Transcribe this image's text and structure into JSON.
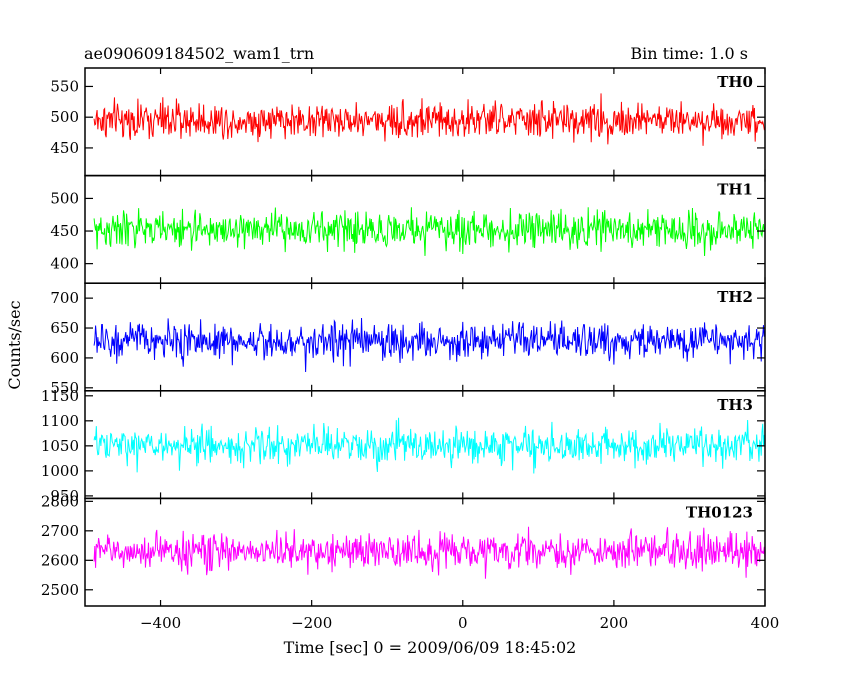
{
  "chart_data": {
    "type": "line",
    "title": "ae090609184502_wam1_trn",
    "bin_time_label": "Bin time: 1.0 s",
    "xlabel": "Time [sec] 0 = 2009/06/09 18:45:02",
    "ylabel": "Counts/sec",
    "xlim": [
      -500,
      400
    ],
    "x_ticks": [
      -400,
      -200,
      0,
      200,
      400
    ],
    "x_tick_labels": [
      "−400",
      "−200",
      "0",
      "200",
      "400"
    ],
    "bin_size_s": 1.0,
    "series": [
      {
        "name": "TH0",
        "color": "#ff0000",
        "ylim": [
          405,
          580
        ],
        "y_ticks": [
          450,
          500,
          550
        ],
        "mean": 495,
        "std": 27
      },
      {
        "name": "TH1",
        "color": "#00ff00",
        "ylim": [
          370,
          535
        ],
        "y_ticks": [
          400,
          450,
          500
        ],
        "mean": 452,
        "std": 25
      },
      {
        "name": "TH2",
        "color": "#0000ff",
        "ylim": [
          545,
          725
        ],
        "y_ticks": [
          550,
          600,
          650,
          700
        ],
        "mean": 628,
        "std": 28
      },
      {
        "name": "TH3",
        "color": "#00ffff",
        "ylim": [
          945,
          1160
        ],
        "y_ticks": [
          950,
          1000,
          1050,
          1100,
          1150
        ],
        "mean": 1050,
        "std": 33
      },
      {
        "name": "TH0123",
        "color": "#ff00ff",
        "ylim": [
          2445,
          2810
        ],
        "y_ticks": [
          2500,
          2600,
          2700,
          2800
        ],
        "mean": 2630,
        "std": 55
      }
    ]
  }
}
